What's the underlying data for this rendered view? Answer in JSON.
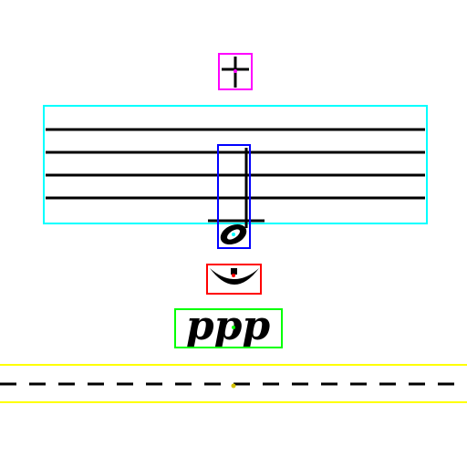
{
  "diagram": {
    "symbols": [
      {
        "id": "sharp-accidental",
        "color_name": "magenta",
        "color": "#ff00ff"
      },
      {
        "id": "staff-region",
        "color_name": "cyan",
        "color": "#00ffff"
      },
      {
        "id": "half-note",
        "color_name": "blue",
        "color": "#0000ff"
      },
      {
        "id": "fermata",
        "color_name": "red",
        "color": "#ff0000"
      },
      {
        "id": "dynamic-marking",
        "color_name": "green",
        "color": "#00ff00",
        "text": "ppp"
      },
      {
        "id": "dashed-line-region",
        "color_name": "yellow",
        "color": "#ffff00"
      }
    ],
    "dynamic_text": "ppp",
    "staff_line_count": 5
  }
}
